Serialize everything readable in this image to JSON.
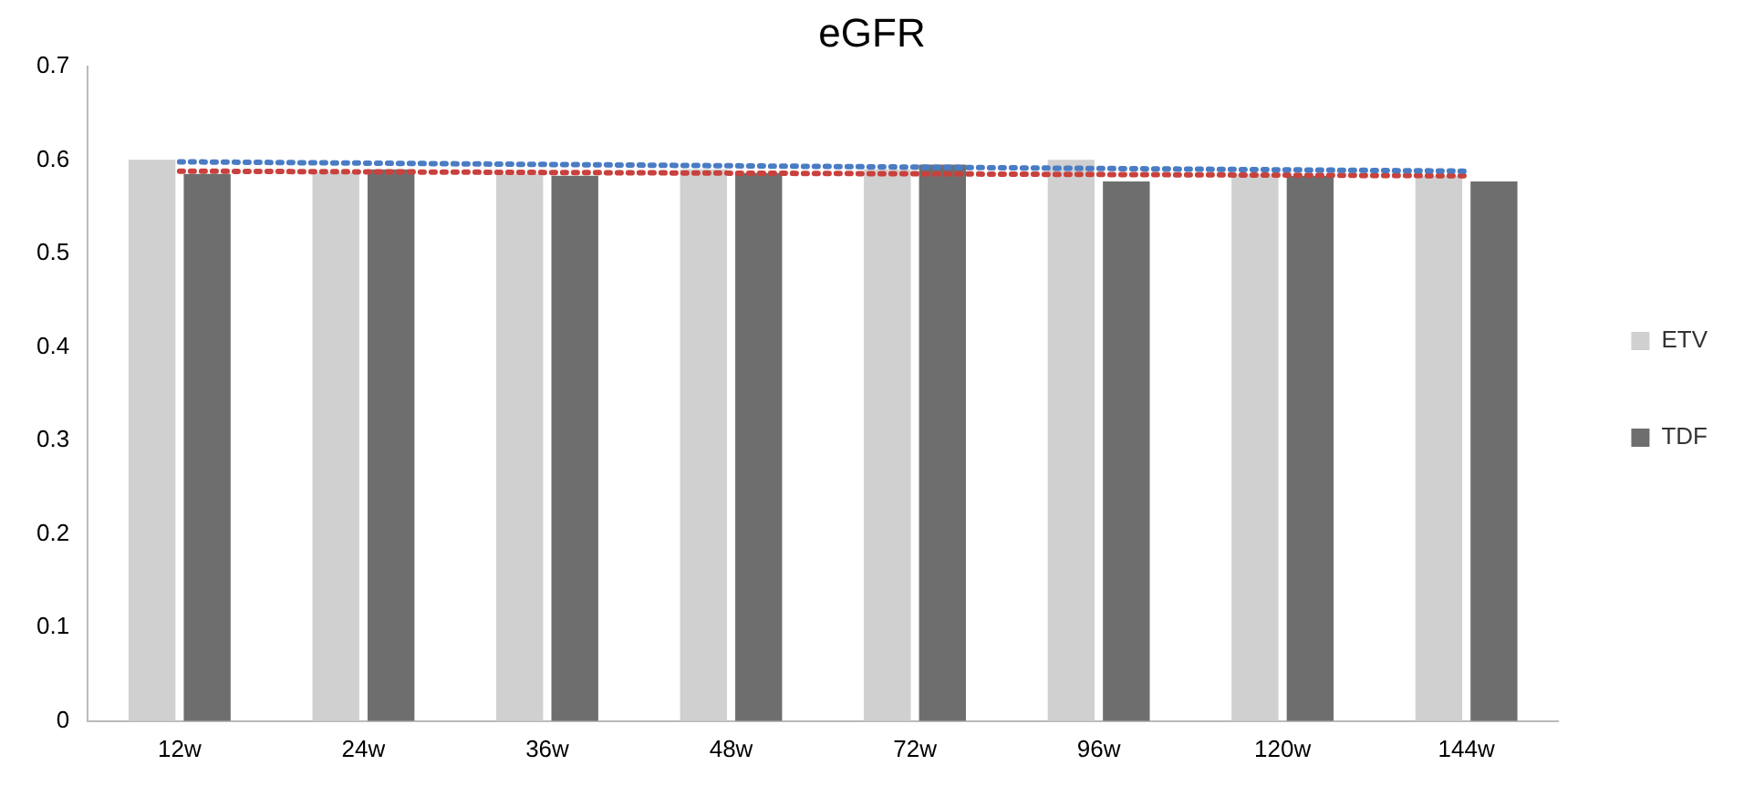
{
  "chart_data": {
    "type": "bar",
    "title": "eGFR",
    "categories": [
      "12w",
      "24w",
      "36w",
      "48w",
      "72w",
      "96w",
      "120w",
      "144w"
    ],
    "series": [
      {
        "name": "ETV",
        "color": "#d0d0d0",
        "values": [
          0.6,
          0.587,
          0.585,
          0.59,
          0.59,
          0.6,
          0.585,
          0.583
        ]
      },
      {
        "name": "TDF",
        "color": "#6e6e6e",
        "values": [
          0.585,
          0.59,
          0.583,
          0.586,
          0.595,
          0.577,
          0.583,
          0.577
        ]
      },
      {
        "type": "line",
        "color": "#4a7cc4",
        "line_style": "dotted",
        "marker": "none",
        "x": [
          "12w",
          "144w"
        ],
        "values": [
          0.598,
          0.588
        ]
      },
      {
        "type": "line",
        "color": "#c9413d",
        "line_style": "dotted",
        "marker": "none",
        "x": [
          "12w",
          "144w"
        ],
        "values": [
          0.588,
          0.583
        ]
      }
    ],
    "ylim": [
      0,
      0.7
    ],
    "yticks": [
      0,
      0.1,
      0.2,
      0.3,
      0.4,
      0.5,
      0.6,
      0.7
    ],
    "grid": false,
    "legend": "right"
  }
}
